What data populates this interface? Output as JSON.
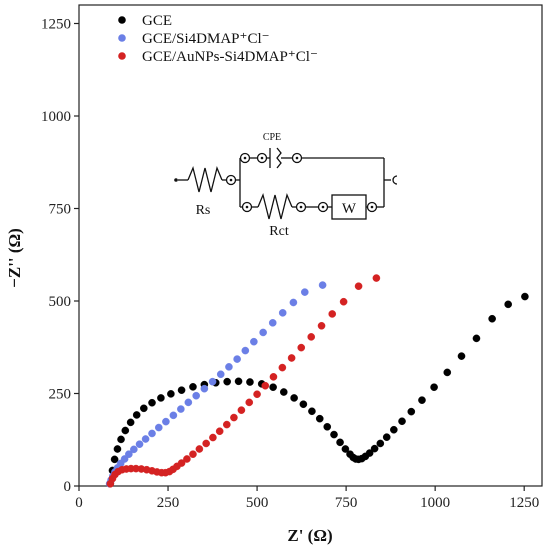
{
  "chart_data": {
    "type": "scatter",
    "title": "",
    "xlabel": "Z' (Ω)",
    "ylabel": "−Z'' (Ω)",
    "xlim": [
      0,
      1300
    ],
    "ylim": [
      0,
      1300
    ],
    "xticks": [
      0,
      250,
      500,
      750,
      1000,
      1250
    ],
    "yticks": [
      0,
      250,
      500,
      750,
      1000,
      1250
    ],
    "grid": false,
    "legend_position": "top-left",
    "series": [
      {
        "name": "GCE",
        "color": "#000000",
        "points": [
          [
            88,
            8
          ],
          [
            94,
            42
          ],
          [
            100,
            72
          ],
          [
            108,
            100
          ],
          [
            118,
            126
          ],
          [
            130,
            150
          ],
          [
            145,
            172
          ],
          [
            162,
            192
          ],
          [
            182,
            210
          ],
          [
            205,
            225
          ],
          [
            230,
            238
          ],
          [
            258,
            249
          ],
          [
            288,
            259
          ],
          [
            320,
            268
          ],
          [
            352,
            274
          ],
          [
            384,
            279
          ],
          [
            416,
            282
          ],
          [
            448,
            283
          ],
          [
            480,
            281
          ],
          [
            513,
            276
          ],
          [
            545,
            267
          ],
          [
            575,
            254
          ],
          [
            604,
            238
          ],
          [
            630,
            221
          ],
          [
            654,
            202
          ],
          [
            676,
            182
          ],
          [
            697,
            160
          ],
          [
            716,
            139
          ],
          [
            733,
            118
          ],
          [
            748,
            100
          ],
          [
            761,
            86
          ],
          [
            770,
            77
          ],
          [
            777,
            73
          ],
          [
            785,
            72
          ],
          [
            794,
            74
          ],
          [
            804,
            80
          ],
          [
            816,
            89
          ],
          [
            830,
            101
          ],
          [
            846,
            115
          ],
          [
            864,
            132
          ],
          [
            884,
            152
          ],
          [
            907,
            175
          ],
          [
            933,
            201
          ],
          [
            963,
            232
          ],
          [
            997,
            267
          ],
          [
            1034,
            307
          ],
          [
            1074,
            351
          ],
          [
            1116,
            399
          ],
          [
            1160,
            452
          ],
          [
            1205,
            491
          ],
          [
            1252,
            512
          ]
        ]
      },
      {
        "name": "GCE/Si4DMAP⁺Cl⁻",
        "color": "#6b7fe6",
        "points": [
          [
            86,
            6
          ],
          [
            90,
            16
          ],
          [
            95,
            27
          ],
          [
            101,
            38
          ],
          [
            108,
            49
          ],
          [
            117,
            61
          ],
          [
            128,
            73
          ],
          [
            140,
            86
          ],
          [
            154,
            99
          ],
          [
            170,
            113
          ],
          [
            187,
            127
          ],
          [
            205,
            142
          ],
          [
            224,
            158
          ],
          [
            244,
            174
          ],
          [
            265,
            191
          ],
          [
            286,
            208
          ],
          [
            307,
            226
          ],
          [
            329,
            244
          ],
          [
            352,
            263
          ],
          [
            375,
            282
          ],
          [
            398,
            302
          ],
          [
            421,
            322
          ],
          [
            444,
            343
          ],
          [
            467,
            366
          ],
          [
            491,
            390
          ],
          [
            517,
            415
          ],
          [
            544,
            441
          ],
          [
            572,
            468
          ],
          [
            602,
            496
          ],
          [
            634,
            524
          ],
          [
            684,
            543
          ]
        ]
      },
      {
        "name": "GCE/AuNPs-Si4DMAP⁺Cl⁻",
        "color": "#d42222",
        "points": [
          [
            88,
            6
          ],
          [
            94,
            20
          ],
          [
            101,
            31
          ],
          [
            110,
            39
          ],
          [
            121,
            44
          ],
          [
            133,
            46
          ],
          [
            146,
            47
          ],
          [
            160,
            47
          ],
          [
            175,
            46
          ],
          [
            190,
            44
          ],
          [
            205,
            41
          ],
          [
            219,
            38
          ],
          [
            232,
            36
          ],
          [
            243,
            36
          ],
          [
            254,
            39
          ],
          [
            264,
            45
          ],
          [
            275,
            53
          ],
          [
            288,
            62
          ],
          [
            303,
            73
          ],
          [
            320,
            86
          ],
          [
            338,
            100
          ],
          [
            357,
            115
          ],
          [
            376,
            131
          ],
          [
            395,
            148
          ],
          [
            415,
            166
          ],
          [
            435,
            185
          ],
          [
            456,
            205
          ],
          [
            478,
            226
          ],
          [
            500,
            248
          ],
          [
            523,
            271
          ],
          [
            546,
            295
          ],
          [
            571,
            320
          ],
          [
            597,
            346
          ],
          [
            624,
            374
          ],
          [
            652,
            403
          ],
          [
            681,
            433
          ],
          [
            711,
            465
          ],
          [
            743,
            498
          ],
          [
            785,
            540
          ],
          [
            835,
            562
          ]
        ]
      }
    ],
    "inset_circuit": {
      "labels": {
        "cpe": "CPE",
        "rs": "Rs",
        "rct": "Rct",
        "w": "W"
      }
    }
  }
}
